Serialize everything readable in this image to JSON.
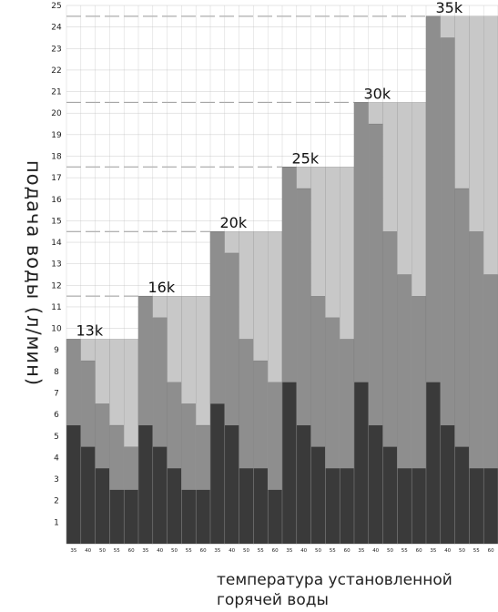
{
  "chart_data": {
    "type": "bar",
    "title": "",
    "ylabel": "подача воды (л/мин)",
    "xlabel_line1": "температура установленной",
    "xlabel_line2": "горячей воды",
    "ylim": [
      0,
      25
    ],
    "yticks": [
      1,
      2,
      3,
      4,
      5,
      6,
      7,
      8,
      9,
      10,
      11,
      12,
      13,
      14,
      15,
      16,
      17,
      18,
      19,
      20,
      21,
      22,
      23,
      24,
      25
    ],
    "x_tick_labels": [
      "35",
      "40",
      "50",
      "55",
      "60"
    ],
    "groups": [
      {
        "name": "13k",
        "cap": 9.5,
        "values": [
          9.5,
          8.5,
          6.5,
          5.5,
          4.5
        ],
        "base": [
          5.5,
          4.5,
          3.5,
          2.5,
          2.5
        ]
      },
      {
        "name": "16k",
        "cap": 11.5,
        "values": [
          11.5,
          10.5,
          7.5,
          6.5,
          5.5
        ],
        "base": [
          5.5,
          4.5,
          3.5,
          2.5,
          2.5
        ]
      },
      {
        "name": "20k",
        "cap": 14.5,
        "values": [
          14.5,
          13.5,
          9.5,
          8.5,
          7.5
        ],
        "base": [
          6.5,
          5.5,
          3.5,
          3.5,
          2.5
        ]
      },
      {
        "name": "25k",
        "cap": 17.5,
        "values": [
          17.5,
          16.5,
          11.5,
          10.5,
          9.5
        ],
        "base": [
          7.5,
          5.5,
          4.5,
          3.5,
          3.5
        ]
      },
      {
        "name": "30k",
        "cap": 20.5,
        "values": [
          20.5,
          19.5,
          14.5,
          12.5,
          11.5
        ],
        "base": [
          7.5,
          5.5,
          4.5,
          3.5,
          3.5
        ]
      },
      {
        "name": "35k",
        "cap": 24.5,
        "values": [
          24.5,
          23.5,
          16.5,
          14.5,
          12.5
        ],
        "base": [
          7.5,
          5.5,
          4.5,
          3.5,
          3.5
        ]
      }
    ],
    "colors": {
      "cap": "#c8c8c8",
      "mid": "#8e8e8e",
      "base": "#3a3a3a",
      "grid": "#cccccc",
      "dash": "#999999"
    }
  }
}
